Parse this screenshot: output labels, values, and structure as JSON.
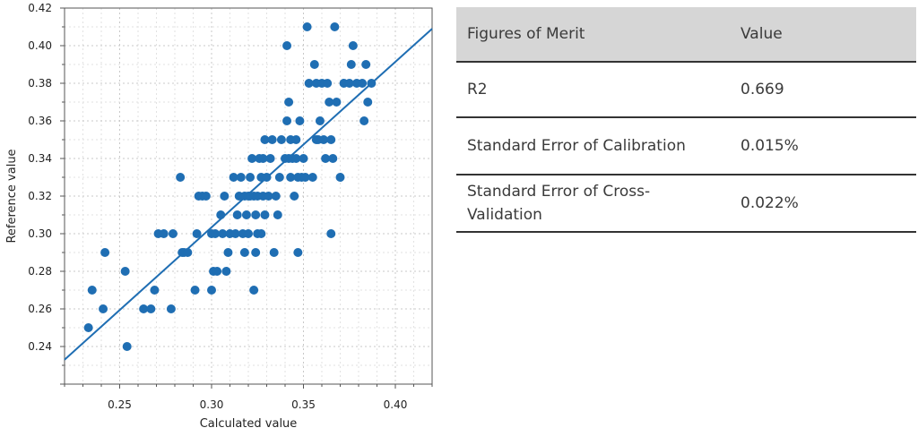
{
  "chart_data": {
    "type": "scatter",
    "xlabel": "Calculated value",
    "ylabel": "Reference value",
    "xlim": [
      0.22,
      0.42
    ],
    "ylim": [
      0.22,
      0.42
    ],
    "xticks": [
      "0.25",
      "0.30",
      "0.35",
      "0.40"
    ],
    "yticks": [
      "0.24",
      "0.26",
      "0.28",
      "0.30",
      "0.32",
      "0.34",
      "0.36",
      "0.38",
      "0.40",
      "0.42"
    ],
    "grid": true,
    "colors": {
      "points": "#1f6eb3",
      "line": "#1f6eb3"
    },
    "regression_line": {
      "x": [
        0.22,
        0.42
      ],
      "y": [
        0.233,
        0.409
      ]
    },
    "points": {
      "x": [
        0.233,
        0.235,
        0.241,
        0.242,
        0.253,
        0.254,
        0.263,
        0.267,
        0.269,
        0.271,
        0.274,
        0.278,
        0.279,
        0.283,
        0.284,
        0.285,
        0.287,
        0.291,
        0.292,
        0.293,
        0.295,
        0.297,
        0.3,
        0.3,
        0.301,
        0.302,
        0.303,
        0.305,
        0.306,
        0.307,
        0.308,
        0.309,
        0.31,
        0.312,
        0.313,
        0.314,
        0.315,
        0.316,
        0.317,
        0.318,
        0.318,
        0.319,
        0.32,
        0.32,
        0.321,
        0.321,
        0.322,
        0.323,
        0.323,
        0.324,
        0.324,
        0.325,
        0.325,
        0.326,
        0.327,
        0.327,
        0.328,
        0.328,
        0.329,
        0.329,
        0.33,
        0.331,
        0.332,
        0.333,
        0.334,
        0.335,
        0.336,
        0.337,
        0.338,
        0.34,
        0.341,
        0.341,
        0.342,
        0.342,
        0.343,
        0.343,
        0.344,
        0.345,
        0.346,
        0.346,
        0.347,
        0.347,
        0.348,
        0.349,
        0.35,
        0.351,
        0.352,
        0.353,
        0.355,
        0.356,
        0.357,
        0.357,
        0.358,
        0.359,
        0.36,
        0.361,
        0.362,
        0.363,
        0.364,
        0.365,
        0.365,
        0.366,
        0.367,
        0.368,
        0.37,
        0.372,
        0.375,
        0.376,
        0.377,
        0.379,
        0.382,
        0.383,
        0.384,
        0.385,
        0.387
      ],
      "y": [
        0.25,
        0.27,
        0.26,
        0.29,
        0.28,
        0.24,
        0.26,
        0.26,
        0.27,
        0.3,
        0.3,
        0.26,
        0.3,
        0.33,
        0.29,
        0.29,
        0.29,
        0.27,
        0.3,
        0.32,
        0.32,
        0.32,
        0.3,
        0.27,
        0.28,
        0.3,
        0.28,
        0.31,
        0.3,
        0.32,
        0.28,
        0.29,
        0.3,
        0.33,
        0.3,
        0.31,
        0.32,
        0.33,
        0.3,
        0.32,
        0.29,
        0.31,
        0.32,
        0.3,
        0.33,
        0.32,
        0.34,
        0.32,
        0.27,
        0.29,
        0.31,
        0.32,
        0.3,
        0.34,
        0.33,
        0.3,
        0.32,
        0.34,
        0.31,
        0.35,
        0.33,
        0.32,
        0.34,
        0.35,
        0.29,
        0.32,
        0.31,
        0.33,
        0.35,
        0.34,
        0.4,
        0.36,
        0.34,
        0.37,
        0.35,
        0.33,
        0.34,
        0.32,
        0.34,
        0.35,
        0.33,
        0.29,
        0.36,
        0.33,
        0.34,
        0.33,
        0.41,
        0.38,
        0.33,
        0.39,
        0.38,
        0.35,
        0.35,
        0.36,
        0.38,
        0.35,
        0.34,
        0.38,
        0.37,
        0.35,
        0.3,
        0.34,
        0.41,
        0.37,
        0.33,
        0.38,
        0.38,
        0.39,
        0.4,
        0.38,
        0.38,
        0.36,
        0.39,
        0.37,
        0.38
      ]
    }
  },
  "table": {
    "headers": [
      "Figures of Merit",
      "Value"
    ],
    "rows": [
      {
        "name": "R2",
        "value": "0.669"
      },
      {
        "name": "Standard Error of Calibration",
        "value": "0.015%"
      },
      {
        "name": "Standard Error of Cross-Validation",
        "value": "0.022%"
      }
    ]
  }
}
